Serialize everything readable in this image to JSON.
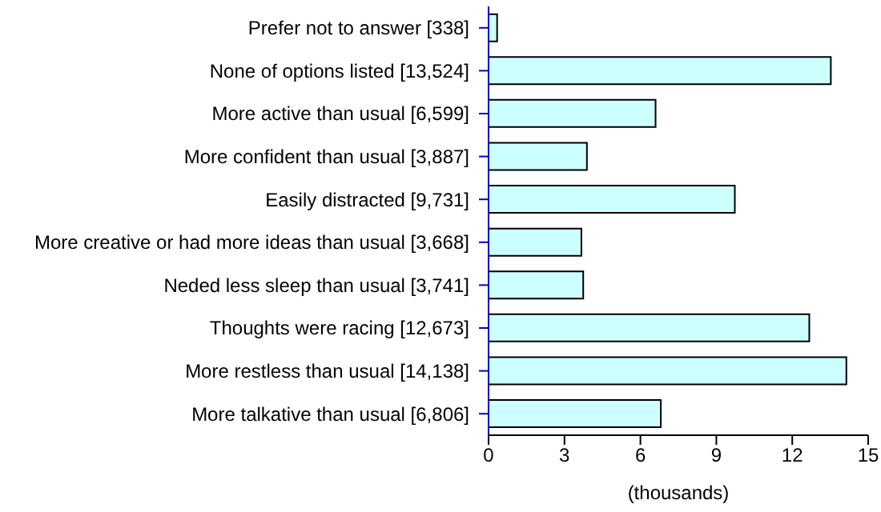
{
  "chart_data": {
    "type": "bar",
    "orientation": "horizontal",
    "xlabel": "(thousands)",
    "categories": [
      "Prefer not to answer [338]",
      "None of options listed [13,524]",
      "More active than usual [6,599]",
      "More confident than usual [3,887]",
      "Easily distracted [9,731]",
      "More creative or had more ideas than usual [3,668]",
      "Neded less sleep than usual [3,741]",
      "Thoughts were racing [12,673]",
      "More restless than usual [14,138]",
      "More talkative than usual [6,806]"
    ],
    "values": [
      0.338,
      13.524,
      6.599,
      3.887,
      9.731,
      3.668,
      3.741,
      12.673,
      14.138,
      6.806
    ],
    "color": "#ccffff",
    "xlim": [
      0,
      15
    ],
    "xticks": [
      0,
      3,
      6,
      9,
      12,
      15
    ]
  }
}
